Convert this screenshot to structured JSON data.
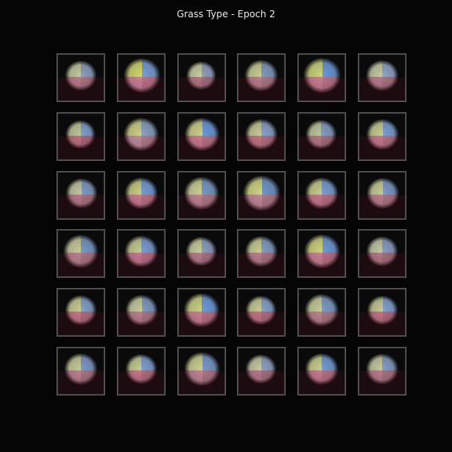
{
  "title": "Grass Type - Epoch 2",
  "grid": {
    "rows": 6,
    "cols": 6,
    "tiles": [
      {
        "r": 0,
        "c": 0,
        "tl": "#e2e6b0",
        "tr": "#9fb7df",
        "bl": "#dc8ea0",
        "br": "#c98598",
        "blob": 0.78,
        "skew": 0.0
      },
      {
        "r": 0,
        "c": 1,
        "tl": "#eef48a",
        "tr": "#8eb5ea",
        "bl": "#e59ab2",
        "br": "#d0879c",
        "blob": 0.9,
        "skew": 0.1
      },
      {
        "r": 0,
        "c": 2,
        "tl": "#e8ecb5",
        "tr": "#a6b8e0",
        "bl": "#d98798",
        "br": "#c27d90",
        "blob": 0.74,
        "skew": -0.05
      },
      {
        "r": 0,
        "c": 3,
        "tl": "#e6eda0",
        "tr": "#8fb2e3",
        "bl": "#e08fa2",
        "br": "#c8889a",
        "blob": 0.82,
        "skew": 0.0
      },
      {
        "r": 0,
        "c": 4,
        "tl": "#e9f19a",
        "tr": "#7eaef0",
        "bl": "#e596aa",
        "br": "#cf8aa0",
        "blob": 0.92,
        "skew": 0.05
      },
      {
        "r": 0,
        "c": 5,
        "tl": "#e4e8b8",
        "tr": "#a3bde6",
        "bl": "#dc8fa5",
        "br": "#c78497",
        "blob": 0.8,
        "skew": 0.0
      },
      {
        "r": 1,
        "c": 0,
        "tl": "#dbe2b5",
        "tr": "#9ab6e6",
        "bl": "#d8899a",
        "br": "#c07a8e",
        "blob": 0.74,
        "skew": -0.05
      },
      {
        "r": 1,
        "c": 1,
        "tl": "#eef08e",
        "tr": "#9cbbe6",
        "bl": "#e7a0bb",
        "br": "#cf8aa0",
        "blob": 0.86,
        "skew": 0.0
      },
      {
        "r": 1,
        "c": 2,
        "tl": "#e8eda9",
        "tr": "#83b0ef",
        "bl": "#e293a8",
        "br": "#cc879b",
        "blob": 0.86,
        "skew": 0.05
      },
      {
        "r": 1,
        "c": 3,
        "tl": "#e2e7b3",
        "tr": "#a0b9e3",
        "bl": "#da8c9e",
        "br": "#c58396",
        "blob": 0.8,
        "skew": 0.0
      },
      {
        "r": 1,
        "c": 4,
        "tl": "#dee4ad",
        "tr": "#95b5e7",
        "bl": "#dc8a9d",
        "br": "#c27f92",
        "blob": 0.76,
        "skew": -0.08
      },
      {
        "r": 1,
        "c": 5,
        "tl": "#e3e9ae",
        "tr": "#94b6e8",
        "bl": "#df90a4",
        "br": "#c98699",
        "blob": 0.8,
        "skew": 0.05
      },
      {
        "r": 2,
        "c": 0,
        "tl": "#dee4b0",
        "tr": "#8fb3ea",
        "bl": "#dc8b9f",
        "br": "#c58295",
        "blob": 0.78,
        "skew": 0.1
      },
      {
        "r": 2,
        "c": 1,
        "tl": "#e6eb9f",
        "tr": "#8cb3ea",
        "bl": "#e196ab",
        "br": "#cb879a",
        "blob": 0.82,
        "skew": 0.0
      },
      {
        "r": 2,
        "c": 2,
        "tl": "#eaf0a3",
        "tr": "#86b1ee",
        "bl": "#e497ad",
        "br": "#cd889c",
        "blob": 0.86,
        "skew": 0.0
      },
      {
        "r": 2,
        "c": 3,
        "tl": "#f0f58c",
        "tr": "#7dadf2",
        "bl": "#e79cb3",
        "br": "#d08aa0",
        "blob": 0.92,
        "skew": 0.05
      },
      {
        "r": 2,
        "c": 4,
        "tl": "#e4eaa8",
        "tr": "#92b5ea",
        "bl": "#df92a7",
        "br": "#c88599",
        "blob": 0.82,
        "skew": 0.0
      },
      {
        "r": 2,
        "c": 5,
        "tl": "#e6eca2",
        "tr": "#8cb2ea",
        "bl": "#e193a8",
        "br": "#c9869a",
        "blob": 0.8,
        "skew": 0.1
      },
      {
        "r": 3,
        "c": 0,
        "tl": "#e4eaab",
        "tr": "#86b0ee",
        "bl": "#e193a9",
        "br": "#ca869a",
        "blob": 0.86,
        "skew": 0.0
      },
      {
        "r": 3,
        "c": 1,
        "tl": "#e2e8ae",
        "tr": "#92b4e9",
        "bl": "#df91a6",
        "br": "#c88498",
        "blob": 0.82,
        "skew": 0.0
      },
      {
        "r": 3,
        "c": 2,
        "tl": "#e7ecac",
        "tr": "#9ab8e6",
        "bl": "#dd8ea2",
        "br": "#c58295",
        "blob": 0.76,
        "skew": -0.05
      },
      {
        "r": 3,
        "c": 3,
        "tl": "#e9ee9f",
        "tr": "#93b5e8",
        "bl": "#df91a6",
        "br": "#c78497",
        "blob": 0.8,
        "skew": 0.0
      },
      {
        "r": 3,
        "c": 4,
        "tl": "#ebf09a",
        "tr": "#86b1ee",
        "bl": "#e398ad",
        "br": "#cc879b",
        "blob": 0.88,
        "skew": 0.05
      },
      {
        "r": 3,
        "c": 5,
        "tl": "#e1e6b6",
        "tr": "#98b6e6",
        "bl": "#da8a9c",
        "br": "#c28092",
        "blob": 0.78,
        "skew": 0.0
      },
      {
        "r": 4,
        "c": 0,
        "tl": "#e3e9ae",
        "tr": "#9cb8e5",
        "bl": "#dd8ea1",
        "br": "#c58294",
        "blob": 0.78,
        "skew": 0.0
      },
      {
        "r": 4,
        "c": 1,
        "tl": "#e4ebab",
        "tr": "#90b3ea",
        "bl": "#e092a7",
        "br": "#c98699",
        "blob": 0.8,
        "skew": 0.05
      },
      {
        "r": 4,
        "c": 2,
        "tl": "#e8eea5",
        "tr": "#85b0ef",
        "bl": "#e499ae",
        "br": "#cd889c",
        "blob": 0.88,
        "skew": 0.0
      },
      {
        "r": 4,
        "c": 3,
        "tl": "#e3e8b3",
        "tr": "#a0b9e3",
        "bl": "#db8c9e",
        "br": "#c48195",
        "blob": 0.76,
        "skew": -0.05
      },
      {
        "r": 4,
        "c": 4,
        "tl": "#e6eca7",
        "tr": "#8db3ea",
        "bl": "#e195aa",
        "br": "#ca879a",
        "blob": 0.84,
        "skew": 0.0
      },
      {
        "r": 4,
        "c": 5,
        "tl": "#e0e6b5",
        "tr": "#9bb8e6",
        "bl": "#db8c9f",
        "br": "#c38094",
        "blob": 0.76,
        "skew": 0.05
      },
      {
        "r": 5,
        "c": 0,
        "tl": "#e4eaa8",
        "tr": "#8bb2eb",
        "bl": "#e094a9",
        "br": "#c9869a",
        "blob": 0.82,
        "skew": 0.0
      },
      {
        "r": 5,
        "c": 1,
        "tl": "#e2e8ae",
        "tr": "#97b6e7",
        "bl": "#dd8fa3",
        "br": "#c68396",
        "blob": 0.78,
        "skew": 0.0
      },
      {
        "r": 5,
        "c": 2,
        "tl": "#eaef9f",
        "tr": "#88b2ee",
        "bl": "#e398ad",
        "br": "#cc879b",
        "blob": 0.88,
        "skew": 0.05
      },
      {
        "r": 5,
        "c": 3,
        "tl": "#e2e7b5",
        "tr": "#9fb9e4",
        "bl": "#da8b9d",
        "br": "#c38094",
        "blob": 0.76,
        "skew": -0.05
      },
      {
        "r": 5,
        "c": 4,
        "tl": "#e5eba9",
        "tr": "#8cb2eb",
        "bl": "#e094a9",
        "br": "#ca869a",
        "blob": 0.82,
        "skew": 0.0
      },
      {
        "r": 5,
        "c": 5,
        "tl": "#e3e8ad",
        "tr": "#94b5e9",
        "bl": "#de90a5",
        "br": "#c78497",
        "blob": 0.8,
        "skew": 0.0
      }
    ]
  }
}
